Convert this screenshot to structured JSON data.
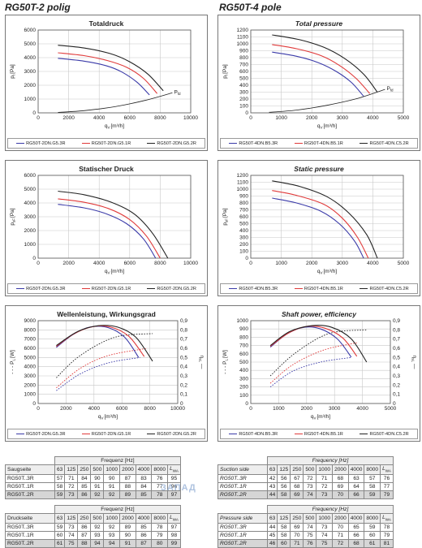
{
  "headings": {
    "left": "RG50T-2 polig",
    "right": "RG50T-4 pole"
  },
  "units": {
    "q_label": "q",
    "q_sub": "V",
    "q_unit": "[m³/h]",
    "pfd": "P",
    "pfd_sub": "fd"
  },
  "colors": {
    "r3": "#3a3aa8",
    "r1": "#e03a3a",
    "r2": "#222222"
  },
  "chart_data": [
    {
      "id": "tl",
      "type": "line",
      "title": "Totaldruck",
      "title_italic": false,
      "ylabel": "p",
      "ylabel_sub": "t",
      "ylabel_unit": "[Pa]",
      "xlim": [
        0,
        10000
      ],
      "ylim": [
        0,
        6000
      ],
      "xticks": [
        0,
        2000,
        4000,
        6000,
        8000,
        10000
      ],
      "yticks": [
        0,
        1000,
        2000,
        3000,
        4000,
        5000,
        6000
      ],
      "series": [
        {
          "name": "RG50T-2DN.G5.3R",
          "color": "#3a3aa8",
          "x": [
            1300,
            3000,
            4500,
            5500,
            6500,
            7300
          ],
          "y": [
            3950,
            3750,
            3400,
            2950,
            2200,
            1300
          ]
        },
        {
          "name": "RG50T-2DN.G5.1R",
          "color": "#e03a3a",
          "x": [
            1300,
            3000,
            4500,
            5800,
            6900,
            7800
          ],
          "y": [
            4350,
            4150,
            3800,
            3300,
            2500,
            1400
          ]
        },
        {
          "name": "RG50T-2DN.G5.2R",
          "color": "#222222",
          "x": [
            1300,
            3000,
            4700,
            6000,
            7200,
            8200
          ],
          "y": [
            4900,
            4700,
            4300,
            3700,
            2800,
            1600
          ]
        }
      ],
      "system_curve": {
        "x": [
          1300,
          3000,
          5000,
          7000,
          8800
        ],
        "y": [
          30,
          160,
          440,
          900,
          1450
        ]
      },
      "pfd_label": true
    },
    {
      "id": "tr",
      "type": "line",
      "title": "Total pressure",
      "title_italic": true,
      "ylabel": "p",
      "ylabel_sub": "t",
      "ylabel_unit": "[Pa]",
      "xlim": [
        0,
        5000
      ],
      "ylim": [
        0,
        1200
      ],
      "xticks": [
        0,
        1000,
        2000,
        3000,
        4000,
        5000
      ],
      "yticks": [
        0,
        100,
        200,
        300,
        400,
        500,
        600,
        700,
        800,
        900,
        1000,
        1100,
        1200
      ],
      "series": [
        {
          "name": "RG50T-4DN.B5.3R",
          "color": "#3a3aa8",
          "x": [
            700,
            1500,
            2200,
            2800,
            3300,
            3700
          ],
          "y": [
            880,
            820,
            730,
            600,
            440,
            240
          ]
        },
        {
          "name": "RG50T-4DN.B5.1R",
          "color": "#e03a3a",
          "x": [
            700,
            1500,
            2300,
            2900,
            3450,
            3900
          ],
          "y": [
            990,
            930,
            830,
            690,
            500,
            280
          ]
        },
        {
          "name": "RG50T-4DN.C5.2R",
          "color": "#222222",
          "x": [
            700,
            1600,
            2400,
            3100,
            3700,
            4150
          ],
          "y": [
            1130,
            1060,
            950,
            780,
            560,
            300
          ]
        }
      ],
      "system_curve": {
        "x": [
          600,
          1500,
          2500,
          3500,
          4400
        ],
        "y": [
          8,
          40,
          110,
          210,
          340
        ]
      },
      "pfd_label": true
    },
    {
      "id": "ml",
      "type": "line",
      "title": "Statischer Druck",
      "title_italic": false,
      "ylabel": "p",
      "ylabel_sub": "sF",
      "ylabel_unit": "[Pa]",
      "xlim": [
        0,
        10000
      ],
      "ylim": [
        0,
        6000
      ],
      "xticks": [
        0,
        2000,
        4000,
        6000,
        8000,
        10000
      ],
      "yticks": [
        0,
        1000,
        2000,
        3000,
        4000,
        5000,
        6000
      ],
      "series": [
        {
          "name": "RG50T-2DN.G5.3R",
          "color": "#3a3aa8",
          "x": [
            1300,
            3000,
            4500,
            5800,
            6900,
            7700
          ],
          "y": [
            3900,
            3650,
            3200,
            2500,
            1400,
            0
          ]
        },
        {
          "name": "RG50T-2DN.G5.1R",
          "color": "#e03a3a",
          "x": [
            1300,
            3000,
            4600,
            6000,
            7100,
            8000
          ],
          "y": [
            4300,
            4050,
            3600,
            2800,
            1600,
            0
          ]
        },
        {
          "name": "RG50T-2DN.G5.2R",
          "color": "#222222",
          "x": [
            1300,
            3000,
            4800,
            6300,
            7500,
            8500
          ],
          "y": [
            4850,
            4600,
            4050,
            3200,
            1800,
            0
          ]
        }
      ],
      "system_curve": null,
      "pfd_label": false
    },
    {
      "id": "mr",
      "type": "line",
      "title": "Static pressure",
      "title_italic": true,
      "ylabel": "p",
      "ylabel_sub": "sF",
      "ylabel_unit": "[Pa]",
      "xlim": [
        0,
        5000
      ],
      "ylim": [
        0,
        1200
      ],
      "xticks": [
        0,
        1000,
        2000,
        3000,
        4000,
        5000
      ],
      "yticks": [
        0,
        100,
        200,
        300,
        400,
        500,
        600,
        700,
        800,
        900,
        1000,
        1100,
        1200
      ],
      "series": [
        {
          "name": "RG50T-4DN.B5.3R",
          "color": "#3a3aa8",
          "x": [
            700,
            1500,
            2300,
            2900,
            3400,
            3700
          ],
          "y": [
            870,
            800,
            680,
            500,
            250,
            0
          ]
        },
        {
          "name": "RG50T-4DN.B5.1R",
          "color": "#e03a3a",
          "x": [
            700,
            1500,
            2400,
            3000,
            3500,
            3850
          ],
          "y": [
            980,
            910,
            780,
            580,
            300,
            0
          ]
        },
        {
          "name": "RG50T-4DN.C5.2R",
          "color": "#222222",
          "x": [
            700,
            1600,
            2500,
            3200,
            3800,
            4150
          ],
          "y": [
            1120,
            1040,
            890,
            660,
            340,
            0
          ]
        }
      ],
      "system_curve": null,
      "pfd_label": false
    },
    {
      "id": "bl",
      "type": "line",
      "title": "Wellenleistung, Wirkungsgrad",
      "title_italic": false,
      "ylabel": "P",
      "ylabel_sub": "L",
      "ylabel_unit": "[W]",
      "ylabel_prefix": "- - -",
      "y2label": "η",
      "y2label_sub": "sL",
      "y2label_suffix": "—",
      "xlim": [
        0,
        10000
      ],
      "ylim": [
        0,
        9000
      ],
      "y2lim": [
        0,
        0.9
      ],
      "xticks": [
        0,
        2000,
        4000,
        6000,
        8000,
        10000
      ],
      "yticks": [
        0,
        1000,
        2000,
        3000,
        4000,
        5000,
        6000,
        7000,
        8000,
        9000
      ],
      "y2ticks": [
        "0",
        "0,1",
        "0,2",
        "0,3",
        "0,4",
        "0,5",
        "0,6",
        "0,7",
        "0,8",
        "0,9"
      ],
      "series": [
        {
          "name": "RG50T-2DN.G5.3R",
          "color": "#3a3aa8",
          "x": [
            1300,
            2500,
            3700,
            5000,
            6200,
            7200
          ],
          "y": [
            6100,
            7500,
            8300,
            8250,
            7200,
            5000
          ]
        },
        {
          "name": "RG50T-2DN.G5.1R",
          "color": "#e03a3a",
          "x": [
            1300,
            2600,
            3900,
            5200,
            6500,
            7600
          ],
          "y": [
            6200,
            7600,
            8350,
            8300,
            7300,
            5100
          ]
        },
        {
          "name": "RG50T-2DN.G5.2R",
          "color": "#222222",
          "x": [
            1300,
            2800,
            4300,
            5700,
            7000,
            8200
          ],
          "y": [
            6300,
            7800,
            8450,
            8300,
            7200,
            4600
          ]
        }
      ],
      "dashed": [
        {
          "color": "#3a3aa8",
          "x": [
            1300,
            3000,
            5000,
            7300
          ],
          "y": [
            0.14,
            0.32,
            0.44,
            0.5
          ]
        },
        {
          "color": "#e03a3a",
          "x": [
            1300,
            3000,
            5000,
            7800
          ],
          "y": [
            0.17,
            0.38,
            0.52,
            0.6
          ]
        },
        {
          "color": "#222222",
          "x": [
            1300,
            3000,
            5500,
            8200
          ],
          "y": [
            0.28,
            0.52,
            0.72,
            0.76
          ]
        }
      ],
      "system_curve": null,
      "pfd_label": false
    },
    {
      "id": "br",
      "type": "line",
      "title": "Shaft power, efficiency",
      "title_italic": true,
      "ylabel": "P",
      "ylabel_sub": "L",
      "ylabel_unit": "[W]",
      "ylabel_prefix": "- - -",
      "y2label": "η",
      "y2label_sub": "sL",
      "y2label_suffix": "—",
      "xlim": [
        0,
        5000
      ],
      "ylim": [
        0,
        1000
      ],
      "y2lim": [
        0,
        0.9
      ],
      "xticks": [
        0,
        1000,
        2000,
        3000,
        4000,
        5000
      ],
      "yticks": [
        0,
        100,
        200,
        300,
        400,
        500,
        600,
        700,
        800,
        900,
        1000
      ],
      "y2ticks": [
        "0",
        "0,1",
        "0,2",
        "0,3",
        "0,4",
        "0,5",
        "0,6",
        "0,7",
        "0,8",
        "0,9"
      ],
      "series": [
        {
          "name": "RG50T-4DN.B5.3R",
          "color": "#3a3aa8",
          "x": [
            700,
            1300,
            1900,
            2500,
            3100,
            3600
          ],
          "y": [
            680,
            840,
            920,
            900,
            780,
            560
          ]
        },
        {
          "name": "RG50T-4DN.B5.1R",
          "color": "#e03a3a",
          "x": [
            700,
            1350,
            2000,
            2650,
            3300,
            3800
          ],
          "y": [
            690,
            850,
            930,
            910,
            790,
            570
          ]
        },
        {
          "name": "RG50T-4DN.C5.2R",
          "color": "#222222",
          "x": [
            700,
            1400,
            2200,
            2900,
            3600,
            4150
          ],
          "y": [
            700,
            870,
            940,
            920,
            780,
            500
          ]
        }
      ],
      "dashed": [
        {
          "color": "#3a3aa8",
          "x": [
            700,
            1500,
            2500,
            3600
          ],
          "y": [
            0.18,
            0.35,
            0.45,
            0.5
          ]
        },
        {
          "color": "#e03a3a",
          "x": [
            700,
            1500,
            2600,
            3800
          ],
          "y": [
            0.22,
            0.42,
            0.58,
            0.66
          ]
        },
        {
          "color": "#222222",
          "x": [
            700,
            1600,
            2800,
            4150
          ],
          "y": [
            0.3,
            0.55,
            0.76,
            0.8
          ]
        }
      ],
      "system_curve": null,
      "pfd_label": false
    }
  ],
  "tables": {
    "freq_header": "Frequenz [Hz]",
    "freq_header_en": "Frequency [Hz]",
    "cols": [
      "63",
      "125",
      "250",
      "500",
      "1000",
      "2000",
      "4000",
      "8000"
    ],
    "lwa": "L",
    "lwa_sub": "WA",
    "saug": {
      "label": "Saugseite",
      "rows": [
        {
          "name": "RG50T..3R",
          "v": [
            "57",
            "71",
            "84",
            "90",
            "90",
            "87",
            "83",
            "76",
            "95"
          ]
        },
        {
          "name": "RG50T..1R",
          "v": [
            "58",
            "72",
            "85",
            "91",
            "91",
            "88",
            "84",
            "77",
            "96"
          ]
        },
        {
          "name": "RG50T..2R",
          "v": [
            "59",
            "73",
            "86",
            "92",
            "92",
            "89",
            "85",
            "78",
            "97"
          ]
        }
      ]
    },
    "druck": {
      "label": "Druckseite",
      "rows": [
        {
          "name": "RG50T..3R",
          "v": [
            "59",
            "73",
            "86",
            "92",
            "92",
            "89",
            "85",
            "78",
            "97"
          ]
        },
        {
          "name": "RG50T..1R",
          "v": [
            "60",
            "74",
            "87",
            "93",
            "93",
            "90",
            "86",
            "79",
            "98"
          ]
        },
        {
          "name": "RG50T..2R",
          "v": [
            "61",
            "75",
            "88",
            "94",
            "94",
            "91",
            "87",
            "80",
            "99"
          ]
        }
      ]
    },
    "suction": {
      "label": "Suction side",
      "rows": [
        {
          "name": "RG50T..3R",
          "v": [
            "42",
            "56",
            "67",
            "72",
            "71",
            "68",
            "63",
            "57",
            "76"
          ]
        },
        {
          "name": "RG50T..1R",
          "v": [
            "43",
            "56",
            "68",
            "73",
            "72",
            "69",
            "64",
            "58",
            "77"
          ]
        },
        {
          "name": "RG50T..2R",
          "v": [
            "44",
            "58",
            "69",
            "74",
            "73",
            "70",
            "66",
            "59",
            "79"
          ]
        }
      ]
    },
    "pressure": {
      "label": "Pressure side",
      "rows": [
        {
          "name": "RG50T..3R",
          "v": [
            "44",
            "58",
            "69",
            "74",
            "73",
            "70",
            "65",
            "59",
            "78"
          ]
        },
        {
          "name": "RG50T..1R",
          "v": [
            "45",
            "58",
            "70",
            "75",
            "74",
            "71",
            "66",
            "60",
            "79"
          ]
        },
        {
          "name": "RG50T..2R",
          "v": [
            "46",
            "60",
            "71",
            "76",
            "75",
            "72",
            "68",
            "61",
            "81"
          ]
        }
      ]
    }
  },
  "watermark": "ЗАПАД"
}
